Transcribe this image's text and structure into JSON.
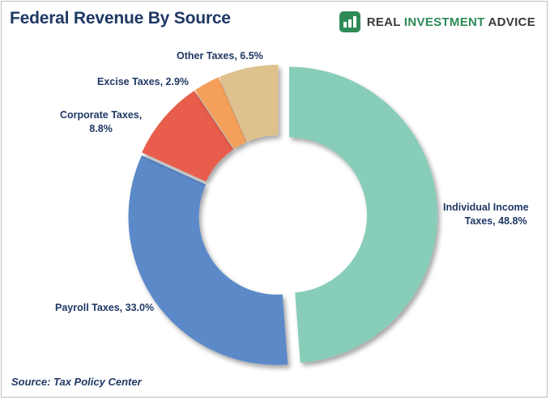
{
  "header": {
    "title": "Federal Revenue By Source",
    "brand_part1": "REAL ",
    "brand_part2": "INVESTMENT",
    "brand_part3": " ADVICE",
    "brand_logo_icon": "rising-bars-logo-icon"
  },
  "source": "Source: Tax Policy Center",
  "chart_data": {
    "type": "pie",
    "style": "donut-exploded",
    "title": "Federal Revenue By Source",
    "legend": "none",
    "slices": [
      {
        "name": "Individual Income Taxes",
        "value": 48.8,
        "label_line1": "Individual Income",
        "label_line2": "Taxes, 48.8%",
        "color": "#88cdb9"
      },
      {
        "name": "Payroll Taxes",
        "value": 33.0,
        "label_line1": "Payroll Taxes, 33.0%",
        "label_line2": "",
        "color": "#5b8ac9"
      },
      {
        "name": "Corporate Taxes",
        "value": 8.8,
        "label_line1": "Corporate Taxes,",
        "label_line2": "8.8%",
        "color": "#e85d4c"
      },
      {
        "name": "Excise Taxes",
        "value": 2.9,
        "label_line1": "Excise Taxes, 2.9%",
        "label_line2": "",
        "color": "#f5a05a"
      },
      {
        "name": "Other Taxes",
        "value": 6.5,
        "label_line1": "Other Taxes, 6.5%",
        "label_line2": "",
        "color": "#dfc18d"
      }
    ]
  }
}
